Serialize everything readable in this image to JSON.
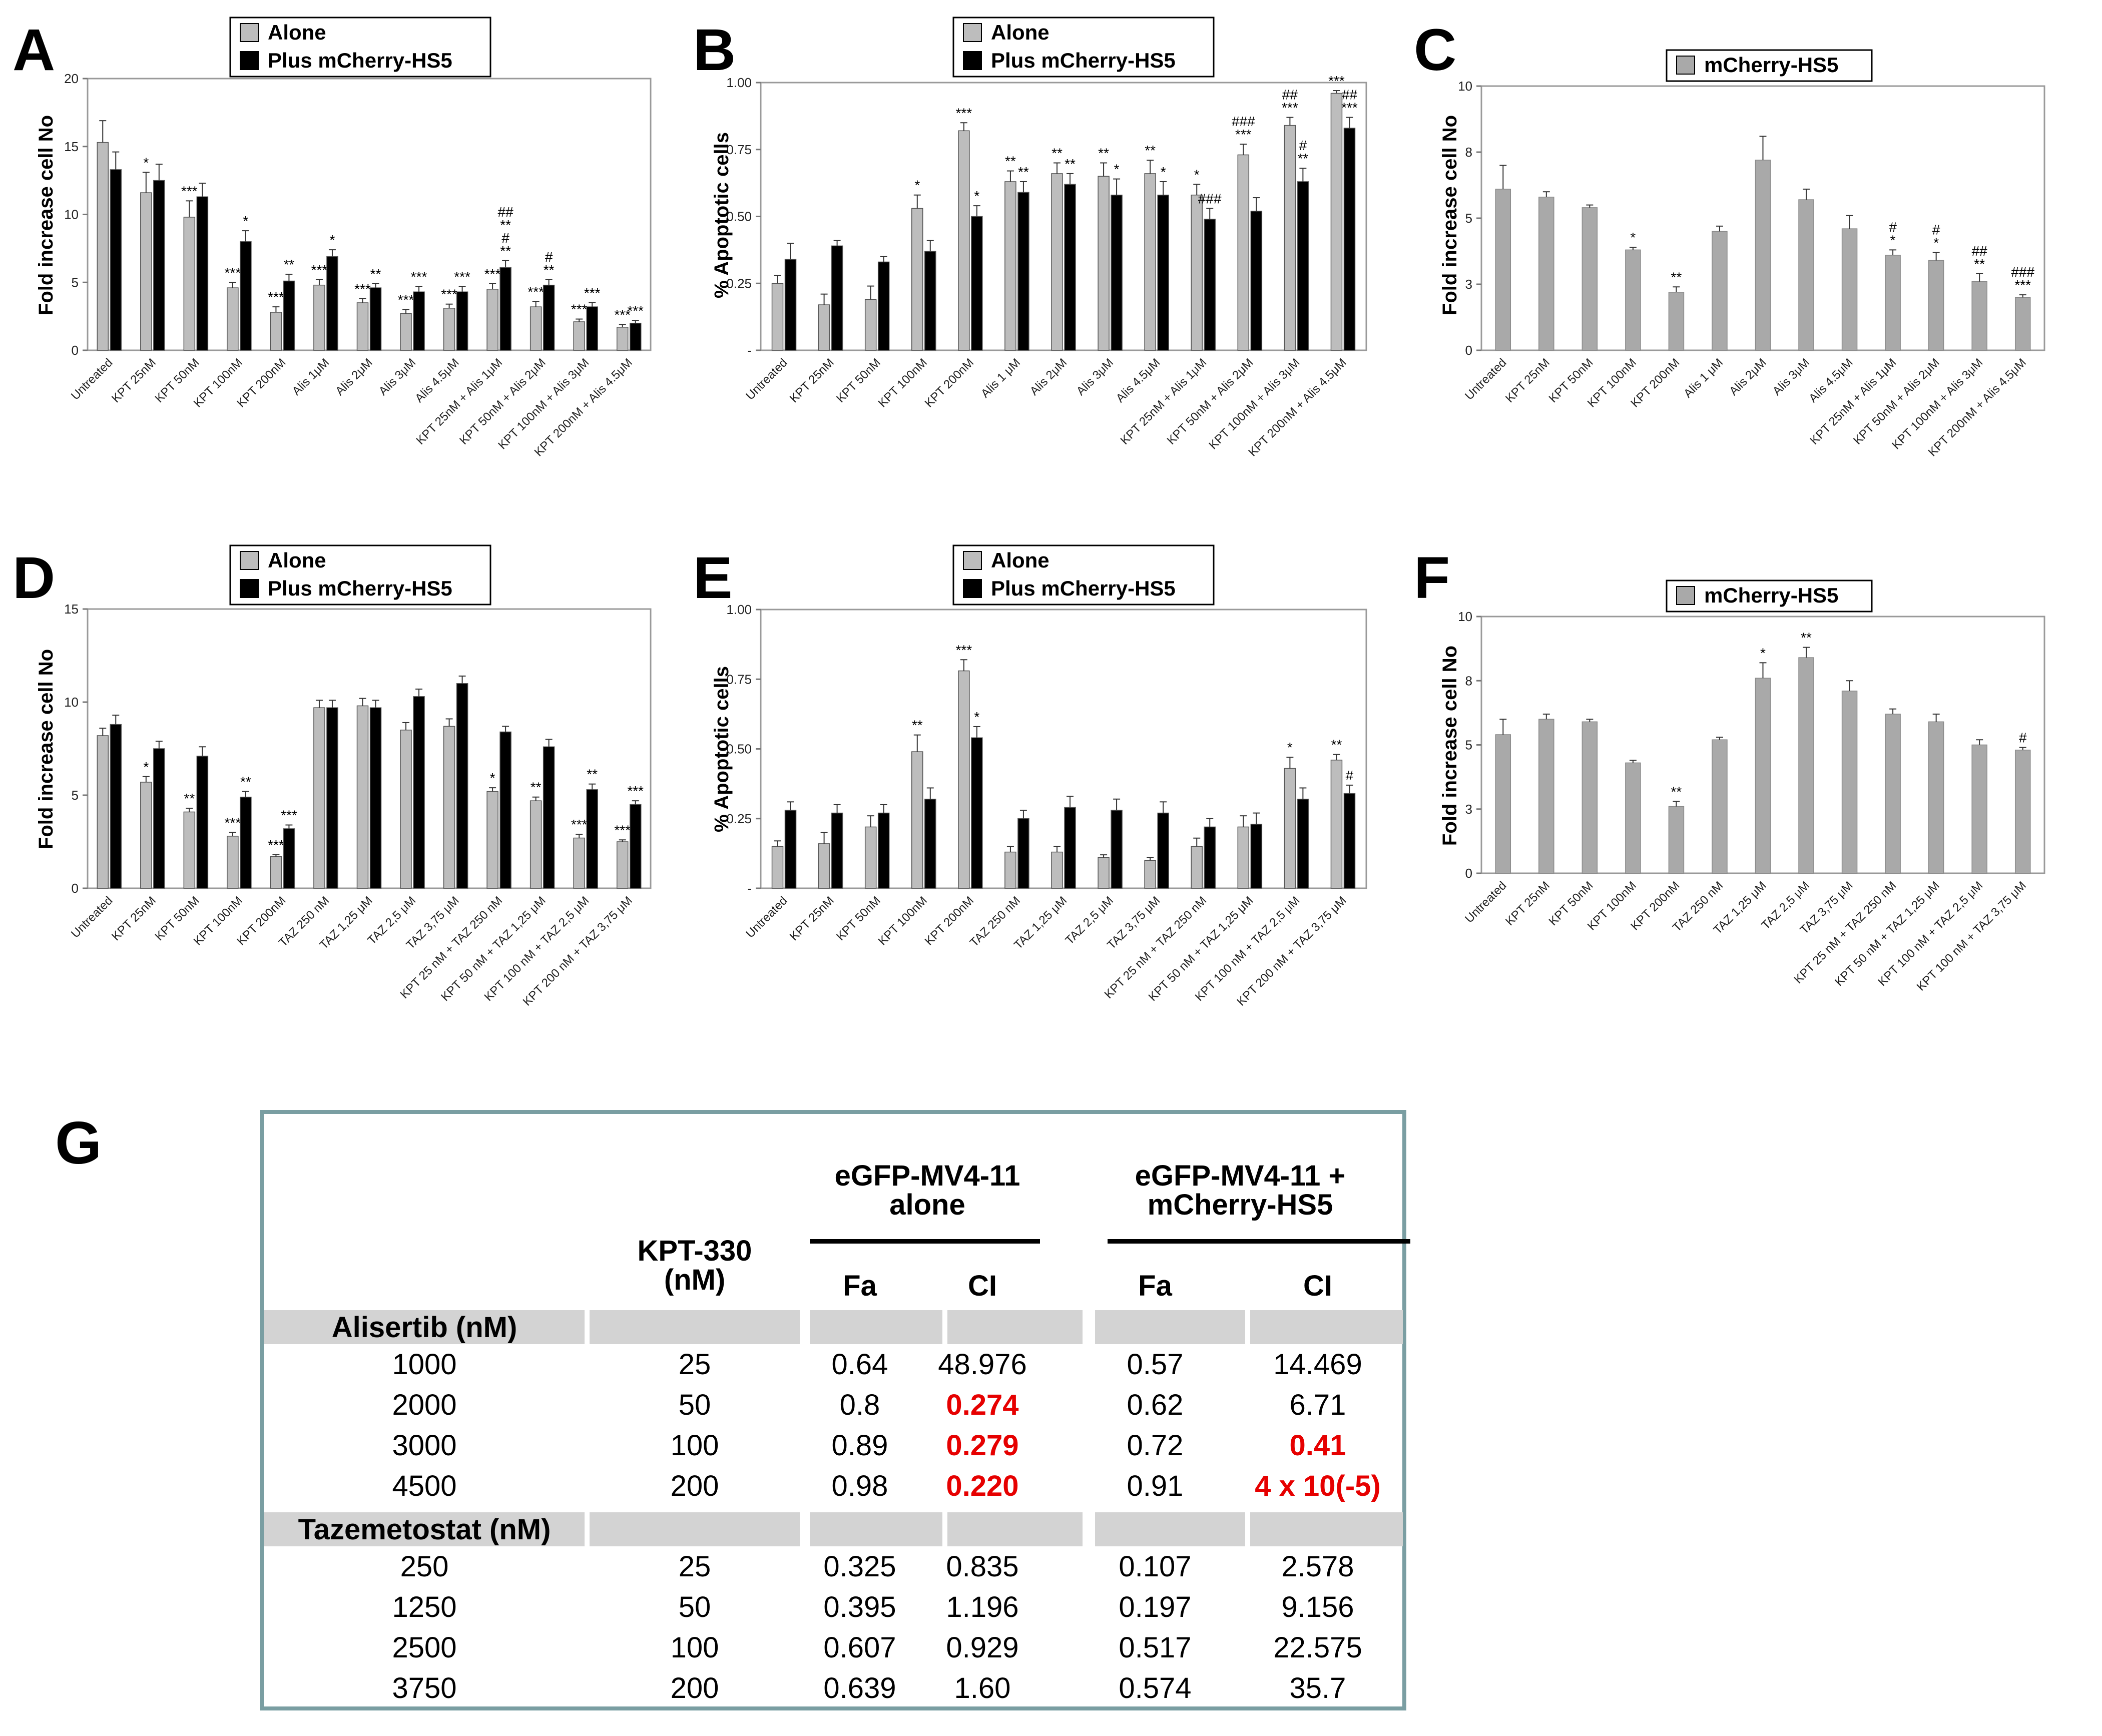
{
  "colors": {
    "alone": "#bdbdbd",
    "plus": "#000000",
    "hs5": "#a9a9a9",
    "table_border": "#7a9ea2",
    "table_band": "#d3d3d3",
    "highlight": "#e60000"
  },
  "chart_data": [
    {
      "id": "A",
      "type": "bar",
      "panel_label": "A",
      "ylabel": "Fold increase cell No",
      "ylim": [
        0,
        20
      ],
      "yticks": [
        "0",
        "5",
        "10",
        "15",
        "20"
      ],
      "legend": [
        "Alone",
        "Plus mCherry-HS5"
      ],
      "legend_position": "top",
      "categories": [
        "Untreated",
        "KPT 25nM",
        "KPT 50nM",
        "KPT 100nM",
        "KPT 200nM",
        "Alis 1μM",
        "Alis 2μM",
        "Alis 3μM",
        "Alis 4.5μM",
        "KPT 25nM + Alis 1μM",
        "KPT 50nM + Alis 2μM",
        "KPT 100nM + Alis 3μM",
        "KPT 200nM + Alis 4.5μM"
      ],
      "series": [
        {
          "name": "Alone",
          "values": [
            15.3,
            11.6,
            9.8,
            4.6,
            2.8,
            4.8,
            3.5,
            2.7,
            3.1,
            4.5,
            3.2,
            2.1,
            1.7
          ],
          "errors": [
            1.6,
            1.5,
            1.2,
            0.4,
            0.4,
            0.4,
            0.3,
            0.3,
            0.3,
            0.4,
            0.4,
            0.2,
            0.2
          ],
          "annotations": [
            "",
            "*",
            "***",
            "***",
            "***",
            "***",
            "***",
            "***",
            "***",
            "***",
            "***",
            "***",
            "***"
          ]
        },
        {
          "name": "Plus mCherry-HS5",
          "values": [
            13.3,
            12.5,
            11.3,
            8.0,
            5.1,
            6.9,
            4.6,
            4.3,
            4.3,
            6.1,
            4.8,
            3.2,
            2.0
          ],
          "errors": [
            1.3,
            1.2,
            1.0,
            0.8,
            0.5,
            0.5,
            0.3,
            0.4,
            0.4,
            0.5,
            0.4,
            0.3,
            0.2
          ],
          "annotations": [
            "",
            "",
            "",
            "*",
            "**",
            "*",
            "**",
            "***",
            "***",
            "##\n**\n#\n**",
            "#\n**",
            "***",
            "***"
          ]
        }
      ]
    },
    {
      "id": "B",
      "type": "bar",
      "panel_label": "B",
      "ylabel": "% Apoptotic cells",
      "ylim": [
        0,
        1
      ],
      "yticks": [
        "-",
        "0.25",
        "0.50",
        "0.75",
        "1.00"
      ],
      "legend": [
        "Alone",
        "Plus mCherry-HS5"
      ],
      "legend_position": "top",
      "categories": [
        "Untreated",
        "KPT 25nM",
        "KPT 50nM",
        "KPT 100nM",
        "KPT 200nM",
        "Alis 1 μM",
        "Alis 2μM",
        "Alis 3μM",
        "Alis 4.5μM",
        "KPT 25nM + Alis 1μM",
        "KPT 50nM + Alis 2μM",
        "KPT 100nM + Alis 3μM",
        "KPT 200nM + Alis 4.5μM"
      ],
      "series": [
        {
          "name": "Alone",
          "values": [
            0.25,
            0.17,
            0.19,
            0.53,
            0.82,
            0.63,
            0.66,
            0.65,
            0.66,
            0.58,
            0.73,
            0.84,
            0.96
          ],
          "errors": [
            0.03,
            0.04,
            0.05,
            0.05,
            0.03,
            0.04,
            0.04,
            0.05,
            0.05,
            0.04,
            0.04,
            0.03,
            0.01
          ],
          "annotations": [
            "",
            "",
            "",
            "*",
            "***",
            "**",
            "**",
            "**",
            "**",
            "*",
            "###\n***",
            "##\n***",
            "***"
          ]
        },
        {
          "name": "Plus mCherry-HS5",
          "values": [
            0.34,
            0.39,
            0.33,
            0.37,
            0.5,
            0.59,
            0.62,
            0.58,
            0.58,
            0.49,
            0.52,
            0.63,
            0.83
          ],
          "errors": [
            0.06,
            0.02,
            0.02,
            0.04,
            0.04,
            0.04,
            0.04,
            0.06,
            0.05,
            0.04,
            0.05,
            0.05,
            0.04
          ],
          "annotations": [
            "",
            "",
            "",
            "",
            "*",
            "**",
            "**",
            "*",
            "*",
            "###",
            "",
            "#\n**",
            "##\n***"
          ]
        }
      ]
    },
    {
      "id": "C",
      "type": "bar",
      "panel_label": "C",
      "ylabel": "Fold increase cell No",
      "ylim": [
        0,
        10
      ],
      "yticks": [
        "0",
        "3",
        "5",
        "8",
        "10"
      ],
      "legend": [
        "mCherry-HS5"
      ],
      "legend_position": "top",
      "categories": [
        "Untreated",
        "KPT 25nM",
        "KPT 50nM",
        "KPT 100nM",
        "KPT 200nM",
        "Alis 1 μM",
        "Alis 2μM",
        "Alis 3μM",
        "Alis 4.5μM",
        "KPT 25nM + Alis 1μM",
        "KPT 50nM + Alis 2μM",
        "KPT 100nM + Alis 3μM",
        "KPT 200nM + Alis 4.5μM"
      ],
      "series": [
        {
          "name": "mCherry-HS5",
          "values": [
            6.1,
            5.8,
            5.4,
            3.8,
            2.2,
            4.5,
            7.2,
            5.7,
            4.6,
            3.6,
            3.4,
            2.6,
            2.0
          ],
          "errors": [
            0.9,
            0.2,
            0.1,
            0.1,
            0.2,
            0.2,
            0.9,
            0.4,
            0.5,
            0.2,
            0.3,
            0.3,
            0.1
          ],
          "annotations": [
            "",
            "",
            "",
            "*",
            "**",
            "",
            "",
            "",
            "",
            "#\n*",
            "#\n*",
            "##\n**",
            "###\n***"
          ]
        }
      ]
    },
    {
      "id": "D",
      "type": "bar",
      "panel_label": "D",
      "ylabel": "Fold increase cell No",
      "ylim": [
        0,
        15
      ],
      "yticks": [
        "0",
        "5",
        "10",
        "15"
      ],
      "legend": [
        "Alone",
        "Plus mCherry-HS5"
      ],
      "legend_position": "top",
      "categories": [
        "Untreated",
        "KPT 25nM",
        "KPT 50nM",
        "KPT 100nM",
        "KPT 200nM",
        "TAZ 250 nM",
        "TAZ 1,25 μM",
        "TAZ 2,5 μM",
        "TAZ 3,75 μM",
        "KPT 25 nM + TAZ 250 nM",
        "KPT 50 nM + TAZ 1,25 μM",
        "KPT 100 nM + TAZ 2,5 μM",
        "KPT 200 nM + TAZ 3,75 μM"
      ],
      "series": [
        {
          "name": "Alone",
          "values": [
            8.2,
            5.7,
            4.1,
            2.8,
            1.7,
            9.7,
            9.8,
            8.5,
            8.7,
            5.2,
            4.7,
            2.7,
            2.5
          ],
          "errors": [
            0.4,
            0.3,
            0.2,
            0.2,
            0.1,
            0.4,
            0.4,
            0.4,
            0.4,
            0.2,
            0.2,
            0.2,
            0.1
          ],
          "annotations": [
            "",
            "*",
            "**",
            "***",
            "***",
            "",
            "",
            "",
            "",
            "*",
            "**",
            "***",
            "***"
          ]
        },
        {
          "name": "Plus mCherry-HS5",
          "values": [
            8.8,
            7.5,
            7.1,
            4.9,
            3.2,
            9.7,
            9.7,
            10.3,
            11.0,
            8.4,
            7.6,
            5.3,
            4.5
          ],
          "errors": [
            0.5,
            0.4,
            0.5,
            0.3,
            0.2,
            0.4,
            0.4,
            0.4,
            0.4,
            0.3,
            0.4,
            0.3,
            0.2
          ],
          "annotations": [
            "",
            "",
            "",
            "**",
            "***",
            "",
            "",
            "",
            "",
            "",
            "",
            "**",
            "***"
          ]
        }
      ]
    },
    {
      "id": "E",
      "type": "bar",
      "panel_label": "E",
      "ylabel": "% Apoptotic cells",
      "ylim": [
        0,
        1
      ],
      "yticks": [
        "-",
        "0.25",
        "0.50",
        "0.75",
        "1.00"
      ],
      "legend": [
        "Alone",
        "Plus mCherry-HS5"
      ],
      "legend_position": "top",
      "categories": [
        "Untreated",
        "KPT 25nM",
        "KPT 50nM",
        "KPT 100nM",
        "KPT 200nM",
        "TAZ 250 nM",
        "TAZ 1,25 μM",
        "TAZ 2,5 μM",
        "TAZ 3,75 μM",
        "KPT 25 nM + TAZ 250 nM",
        "KPT 50 nM + TAZ 1,25 μM",
        "KPT 100 nM + TAZ 2,5 μM",
        "KPT 200 nM + TAZ 3,75 μM"
      ],
      "series": [
        {
          "name": "Alone",
          "values": [
            0.15,
            0.16,
            0.22,
            0.49,
            0.78,
            0.13,
            0.13,
            0.11,
            0.1,
            0.15,
            0.22,
            0.43,
            0.46
          ],
          "errors": [
            0.02,
            0.04,
            0.04,
            0.06,
            0.04,
            0.02,
            0.02,
            0.01,
            0.01,
            0.03,
            0.04,
            0.04,
            0.02
          ],
          "annotations": [
            "",
            "",
            "",
            "**",
            "***",
            "",
            "",
            "",
            "",
            "",
            "",
            "*",
            "**"
          ]
        },
        {
          "name": "Plus mCherry-HS5",
          "values": [
            0.28,
            0.27,
            0.27,
            0.32,
            0.54,
            0.25,
            0.29,
            0.28,
            0.27,
            0.22,
            0.23,
            0.32,
            0.34
          ],
          "errors": [
            0.03,
            0.03,
            0.03,
            0.04,
            0.04,
            0.03,
            0.04,
            0.04,
            0.04,
            0.03,
            0.04,
            0.04,
            0.03
          ],
          "annotations": [
            "",
            "",
            "",
            "",
            "*",
            "",
            "",
            "",
            "",
            "",
            "",
            "",
            "#"
          ]
        }
      ]
    },
    {
      "id": "F",
      "type": "bar",
      "panel_label": "F",
      "ylabel": "Fold increase cell No",
      "ylim": [
        0,
        10
      ],
      "yticks": [
        "0",
        "3",
        "5",
        "8",
        "10"
      ],
      "legend": [
        "mCherry-HS5"
      ],
      "legend_position": "top",
      "categories": [
        "Untreated",
        "KPT 25nM",
        "KPT 50nM",
        "KPT 100nM",
        "KPT 200nM",
        "TAZ 250 nM",
        "TAZ 1,25 μM",
        "TAZ 2,5 μM",
        "TAZ 3,75 μM",
        "KPT 25 nM + TAZ 250 nM",
        "KPT 50 nM + TAZ 1,25 μM",
        "KPT 100 nM + TAZ 2,5 μM",
        "KPT 100 nM + TAZ 3,75 μM"
      ],
      "series": [
        {
          "name": "mCherry-HS5",
          "values": [
            5.4,
            6.0,
            5.9,
            4.3,
            2.6,
            5.2,
            7.6,
            8.4,
            7.1,
            6.2,
            5.9,
            5.0,
            4.8
          ],
          "errors": [
            0.6,
            0.2,
            0.1,
            0.1,
            0.2,
            0.1,
            0.6,
            0.4,
            0.4,
            0.2,
            0.3,
            0.2,
            0.1
          ],
          "annotations": [
            "",
            "",
            "",
            "",
            "**",
            "",
            "*",
            "**",
            "",
            "",
            "",
            "",
            "#"
          ]
        }
      ]
    },
    {
      "id": "G",
      "type": "table",
      "panel_label": "G",
      "headers": {
        "kpt": "KPT-330\n(nM)",
        "group_alone": "eGFP-MV4-11\nalone",
        "group_plus": "eGFP-MV4-11 +\nmCherry-HS5",
        "fa": "Fa",
        "ci": "CI"
      },
      "sections": [
        {
          "title": "Alisertib (nM)",
          "rows": [
            {
              "drug": "1000",
              "kpt": "25",
              "fa1": "0.64",
              "ci1": "48.976",
              "fa2": "0.57",
              "ci2": "14.469",
              "ci1_red": false,
              "ci2_red": false
            },
            {
              "drug": "2000",
              "kpt": "50",
              "fa1": "0.8",
              "ci1": "0.274",
              "fa2": "0.62",
              "ci2": "6.71",
              "ci1_red": true,
              "ci2_red": false
            },
            {
              "drug": "3000",
              "kpt": "100",
              "fa1": "0.89",
              "ci1": "0.279",
              "fa2": "0.72",
              "ci2": "0.41",
              "ci1_red": true,
              "ci2_red": true
            },
            {
              "drug": "4500",
              "kpt": "200",
              "fa1": "0.98",
              "ci1": "0.220",
              "fa2": "0.91",
              "ci2": "4 x 10(-5)",
              "ci1_red": true,
              "ci2_red": true
            }
          ]
        },
        {
          "title": "Tazemetostat (nM)",
          "rows": [
            {
              "drug": "250",
              "kpt": "25",
              "fa1": "0.325",
              "ci1": "0.835",
              "fa2": "0.107",
              "ci2": "2.578",
              "ci1_red": false,
              "ci2_red": false
            },
            {
              "drug": "1250",
              "kpt": "50",
              "fa1": "0.395",
              "ci1": "1.196",
              "fa2": "0.197",
              "ci2": "9.156",
              "ci1_red": false,
              "ci2_red": false
            },
            {
              "drug": "2500",
              "kpt": "100",
              "fa1": "0.607",
              "ci1": "0.929",
              "fa2": "0.517",
              "ci2": "22.575",
              "ci1_red": false,
              "ci2_red": false
            },
            {
              "drug": "3750",
              "kpt": "200",
              "fa1": "0.639",
              "ci1": "1.60",
              "fa2": "0.574",
              "ci2": "35.7",
              "ci1_red": false,
              "ci2_red": false
            }
          ]
        }
      ]
    }
  ]
}
